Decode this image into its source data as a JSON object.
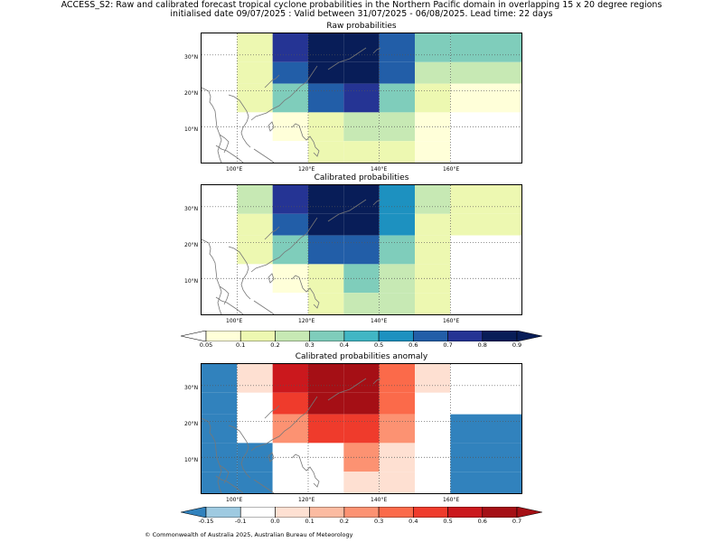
{
  "header": {
    "line1": "ACCESS_S2: Raw and calibrated forecast tropical cyclone probabilities in the Northern Pacific domain in overlapping 15 x 20 degree regions",
    "line2": "initialised date 09/07/2025 :  Valid between 31/07/2025 - 06/08/2025. Lead time: 22 days"
  },
  "panels": [
    {
      "title": "Raw probabilities",
      "scale": "prob",
      "rows": [
        [
          null,
          0.1,
          0.7,
          0.9,
          0.9,
          0.6,
          0.3,
          0.3
        ],
        [
          null,
          0.1,
          0.6,
          0.9,
          0.9,
          0.6,
          0.2,
          0.2
        ],
        [
          null,
          0.1,
          0.3,
          0.6,
          0.7,
          0.3,
          0.1,
          0.05
        ],
        [
          null,
          null,
          0.05,
          0.1,
          0.2,
          0.2,
          0.05,
          null
        ],
        [
          null,
          null,
          null,
          0.1,
          0.1,
          0.1,
          0.05,
          null
        ]
      ]
    },
    {
      "title": "Calibrated probabilities",
      "scale": "prob",
      "rows": [
        [
          null,
          0.2,
          0.7,
          0.9,
          0.8,
          0.5,
          0.2,
          0.1
        ],
        [
          null,
          0.1,
          0.6,
          0.9,
          0.8,
          0.5,
          0.1,
          0.1
        ],
        [
          null,
          0.1,
          0.3,
          0.6,
          0.6,
          0.3,
          0.1,
          null
        ],
        [
          null,
          null,
          0.05,
          0.1,
          0.3,
          0.2,
          0.1,
          null
        ],
        [
          null,
          null,
          null,
          0.1,
          0.2,
          0.2,
          0.1,
          null
        ]
      ]
    },
    {
      "title": "Calibrated probabilities anomaly",
      "scale": "anom",
      "rows": [
        [
          -0.15,
          0.05,
          0.5,
          0.7,
          0.6,
          0.3,
          0.05,
          null
        ],
        [
          -0.15,
          null,
          0.4,
          0.7,
          0.6,
          0.3,
          null,
          null
        ],
        [
          -0.15,
          null,
          0.2,
          0.4,
          0.4,
          0.2,
          null,
          -0.15
        ],
        [
          -0.15,
          -0.15,
          -0.1,
          null,
          0.2,
          0.05,
          null,
          -0.15
        ],
        [
          -0.15,
          -0.15,
          -0.1,
          -0.1,
          0.05,
          0.05,
          null,
          -0.15
        ]
      ]
    }
  ],
  "lat_labels": [
    "30°N",
    "20°N",
    "10°N"
  ],
  "lon_labels": [
    "100°E",
    "120°E",
    "140°E",
    "160°E"
  ],
  "prob_colorbar": {
    "labels": [
      "0.05",
      "0.1",
      "0.2",
      "0.3",
      "0.4",
      "0.5",
      "0.6",
      "0.7",
      "0.8",
      "0.9"
    ],
    "colors": [
      "#ffffd9",
      "#edf8b1",
      "#c7e9b4",
      "#7fcdbb",
      "#41b6c4",
      "#1d91c0",
      "#225ea8",
      "#253494",
      "#081d58"
    ]
  },
  "anom_colorbar": {
    "labels": [
      "-0.15",
      "-0.1",
      "0.0",
      "0.1",
      "0.2",
      "0.3",
      "0.4",
      "0.5",
      "0.6",
      "0.7"
    ],
    "colors": [
      "#9ecae1",
      "#ffffff",
      "#fee0d2",
      "#fcbba1",
      "#fc9272",
      "#fb6a4a",
      "#ef3b2c",
      "#cb181d",
      "#a50f15"
    ],
    "under_color": "#3182bd"
  },
  "footer": "© Commonwealth of Australia 2025, Australian Bureau of Meteorology"
}
